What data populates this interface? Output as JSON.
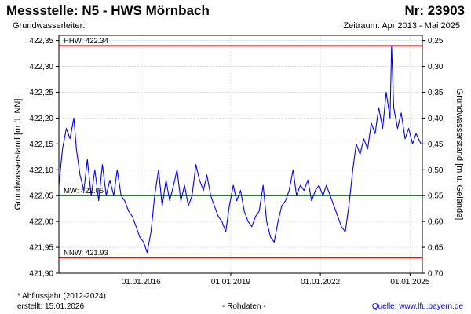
{
  "header": {
    "title": "Messstelle: N5 - HWS Mörnbach",
    "nr": "Nr: 23903",
    "grundwasserleiter": "Grundwasserleiter:",
    "zeitraum": "Zeitraum: Apr 2013 - Mai 2025"
  },
  "footer": {
    "footnote": "* Abflussjahr (2012-2024)",
    "erstellt": "erstellt:  15.01.2026",
    "rohdaten": "- Rohdaten -",
    "quelle": "Quelle: www.lfu.bayern.de"
  },
  "colors": {
    "series": "#0000ff",
    "extreme": "#ff0000",
    "mean": "#009900",
    "grid": "#c8c8c8"
  },
  "chart_data": {
    "type": "line",
    "ylabel": "Grundwasserstand [m ü. NN]",
    "y2label": "Grundwasserstand [m u. Gelände]",
    "ylim": [
      421.9,
      422.36
    ],
    "y2lim": [
      0.7,
      0.24
    ],
    "xlim": [
      "2013-04-01",
      "2025-05-31"
    ],
    "grid": true,
    "yticks": [
      {
        "value": 421.9,
        "label": "421,90"
      },
      {
        "value": 421.95,
        "label": "421,95"
      },
      {
        "value": 422.0,
        "label": "422,00"
      },
      {
        "value": 422.05,
        "label": "422,05"
      },
      {
        "value": 422.1,
        "label": "422,10"
      },
      {
        "value": 422.15,
        "label": "422,15"
      },
      {
        "value": 422.2,
        "label": "422,20"
      },
      {
        "value": 422.25,
        "label": "422,25"
      },
      {
        "value": 422.3,
        "label": "422,30"
      },
      {
        "value": 422.35,
        "label": "422,35"
      }
    ],
    "y2ticks": [
      {
        "value": 0.25,
        "label": "0,25"
      },
      {
        "value": 0.3,
        "label": "0,30"
      },
      {
        "value": 0.35,
        "label": "0,35"
      },
      {
        "value": 0.4,
        "label": "0,40"
      },
      {
        "value": 0.45,
        "label": "0,45"
      },
      {
        "value": 0.5,
        "label": "0,50"
      },
      {
        "value": 0.55,
        "label": "0,55"
      },
      {
        "value": 0.6,
        "label": "0,60"
      },
      {
        "value": 0.65,
        "label": "0,65"
      },
      {
        "value": 0.7,
        "label": "0,70"
      }
    ],
    "xticks": [
      {
        "date": "2016-01-01",
        "label": "01.01.2016"
      },
      {
        "date": "2019-01-01",
        "label": "01.01.2019"
      },
      {
        "date": "2022-01-01",
        "label": "01.01.2022"
      },
      {
        "date": "2025-01-01",
        "label": "01.01.2025"
      }
    ],
    "reference_lines": [
      {
        "id": "hhw",
        "label": "HHW: 422.34",
        "value": 422.34,
        "color": "#ff0000"
      },
      {
        "id": "mw",
        "label": "MW: 422.05",
        "value": 422.05,
        "color": "#009900"
      },
      {
        "id": "nnw",
        "label": "NNW: 421.93",
        "value": 421.93,
        "color": "#ff0000"
      }
    ],
    "series": [
      {
        "color": "#0000ff",
        "points": [
          [
            "2013-04-01",
            422.07
          ],
          [
            "2013-05-15",
            422.14
          ],
          [
            "2013-07-01",
            422.18
          ],
          [
            "2013-08-15",
            422.16
          ],
          [
            "2013-10-01",
            422.2
          ],
          [
            "2013-11-01",
            422.14
          ],
          [
            "2013-12-15",
            422.09
          ],
          [
            "2014-02-01",
            422.06
          ],
          [
            "2014-03-15",
            422.12
          ],
          [
            "2014-05-01",
            422.05
          ],
          [
            "2014-06-15",
            422.1
          ],
          [
            "2014-08-01",
            422.04
          ],
          [
            "2014-09-15",
            422.11
          ],
          [
            "2014-11-01",
            422.05
          ],
          [
            "2014-12-15",
            422.08
          ],
          [
            "2015-02-01",
            422.05
          ],
          [
            "2015-03-15",
            422.1
          ],
          [
            "2015-05-01",
            422.05
          ],
          [
            "2015-06-15",
            422.04
          ],
          [
            "2015-08-01",
            422.02
          ],
          [
            "2015-09-15",
            422.01
          ],
          [
            "2015-11-01",
            421.99
          ],
          [
            "2015-12-15",
            421.97
          ],
          [
            "2016-02-01",
            421.96
          ],
          [
            "2016-03-15",
            421.94
          ],
          [
            "2016-05-01",
            421.98
          ],
          [
            "2016-06-15",
            422.05
          ],
          [
            "2016-08-01",
            422.1
          ],
          [
            "2016-09-15",
            422.03
          ],
          [
            "2016-11-01",
            422.08
          ],
          [
            "2016-12-15",
            422.04
          ],
          [
            "2017-02-01",
            422.07
          ],
          [
            "2017-03-15",
            422.1
          ],
          [
            "2017-05-01",
            422.04
          ],
          [
            "2017-06-15",
            422.07
          ],
          [
            "2017-08-01",
            422.03
          ],
          [
            "2017-09-15",
            422.05
          ],
          [
            "2017-11-01",
            422.11
          ],
          [
            "2017-12-15",
            422.08
          ],
          [
            "2018-02-01",
            422.06
          ],
          [
            "2018-03-15",
            422.09
          ],
          [
            "2018-05-01",
            422.05
          ],
          [
            "2018-06-15",
            422.03
          ],
          [
            "2018-08-01",
            422.01
          ],
          [
            "2018-09-15",
            422.0
          ],
          [
            "2018-11-01",
            421.98
          ],
          [
            "2018-12-15",
            422.03
          ],
          [
            "2019-02-01",
            422.07
          ],
          [
            "2019-03-15",
            422.04
          ],
          [
            "2019-05-01",
            422.06
          ],
          [
            "2019-06-15",
            422.02
          ],
          [
            "2019-08-01",
            422.0
          ],
          [
            "2019-09-15",
            421.99
          ],
          [
            "2019-11-01",
            422.01
          ],
          [
            "2019-12-15",
            422.02
          ],
          [
            "2020-02-01",
            422.07
          ],
          [
            "2020-03-15",
            422.0
          ],
          [
            "2020-05-01",
            421.97
          ],
          [
            "2020-06-15",
            421.96
          ],
          [
            "2020-08-01",
            422.0
          ],
          [
            "2020-09-15",
            422.03
          ],
          [
            "2020-11-01",
            422.04
          ],
          [
            "2020-12-15",
            422.06
          ],
          [
            "2021-02-01",
            422.1
          ],
          [
            "2021-03-15",
            422.05
          ],
          [
            "2021-05-01",
            422.07
          ],
          [
            "2021-06-15",
            422.06
          ],
          [
            "2021-08-01",
            422.08
          ],
          [
            "2021-09-15",
            422.04
          ],
          [
            "2021-11-01",
            422.06
          ],
          [
            "2021-12-15",
            422.07
          ],
          [
            "2022-02-01",
            422.05
          ],
          [
            "2022-03-15",
            422.07
          ],
          [
            "2022-05-01",
            422.05
          ],
          [
            "2022-06-15",
            422.03
          ],
          [
            "2022-08-01",
            422.01
          ],
          [
            "2022-09-15",
            421.99
          ],
          [
            "2022-11-01",
            421.98
          ],
          [
            "2022-12-15",
            422.03
          ],
          [
            "2023-02-01",
            422.1
          ],
          [
            "2023-03-15",
            422.15
          ],
          [
            "2023-05-01",
            422.13
          ],
          [
            "2023-06-15",
            422.16
          ],
          [
            "2023-08-01",
            422.14
          ],
          [
            "2023-09-15",
            422.19
          ],
          [
            "2023-11-01",
            422.17
          ],
          [
            "2023-12-15",
            422.22
          ],
          [
            "2024-02-01",
            422.18
          ],
          [
            "2024-03-15",
            422.25
          ],
          [
            "2024-05-01",
            422.2
          ],
          [
            "2024-05-20",
            422.34
          ],
          [
            "2024-06-15",
            422.22
          ],
          [
            "2024-08-01",
            422.18
          ],
          [
            "2024-09-15",
            422.21
          ],
          [
            "2024-11-01",
            422.16
          ],
          [
            "2024-12-15",
            422.18
          ],
          [
            "2025-02-01",
            422.15
          ],
          [
            "2025-03-15",
            422.17
          ],
          [
            "2025-05-15",
            422.15
          ]
        ]
      }
    ]
  }
}
